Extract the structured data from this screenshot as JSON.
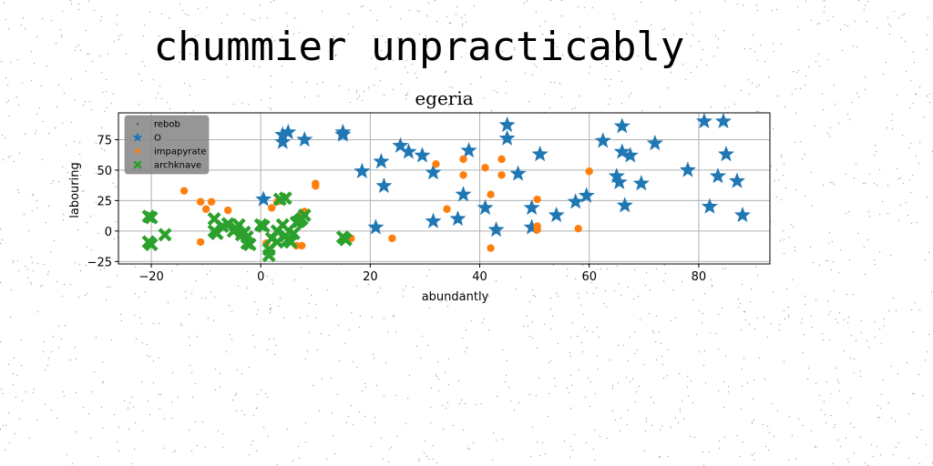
{
  "figure": {
    "suptitle": "chummier unpracticably"
  },
  "chart_data": {
    "type": "scatter",
    "title": "egeria",
    "xlabel": "abundantly",
    "ylabel": "labouring",
    "xlim": [
      -26,
      93
    ],
    "ylim": [
      -27,
      97
    ],
    "xticks": [
      -20,
      0,
      20,
      40,
      60,
      80
    ],
    "yticks": [
      -25,
      0,
      25,
      50,
      75
    ],
    "grid": true,
    "legend_position": "upper-left",
    "series": [
      {
        "name": "rebob",
        "color": "#000000",
        "marker": "dot",
        "points": []
      },
      {
        "name": "O",
        "color": "#1f77b4",
        "marker": "star",
        "points": [
          [
            0.5,
            26
          ],
          [
            4,
            79
          ],
          [
            5,
            81
          ],
          [
            4,
            73
          ],
          [
            8,
            75
          ],
          [
            15,
            81
          ],
          [
            15,
            79
          ],
          [
            18.5,
            49
          ],
          [
            21,
            3
          ],
          [
            22,
            57
          ],
          [
            22.5,
            37
          ],
          [
            25.5,
            70
          ],
          [
            27,
            65
          ],
          [
            29.5,
            62
          ],
          [
            31.5,
            48
          ],
          [
            31.5,
            8
          ],
          [
            36,
            10
          ],
          [
            37,
            30
          ],
          [
            38,
            66
          ],
          [
            41,
            19
          ],
          [
            43,
            1
          ],
          [
            45,
            87
          ],
          [
            45,
            76
          ],
          [
            47,
            47
          ],
          [
            49.5,
            19
          ],
          [
            49.5,
            3
          ],
          [
            51,
            63
          ],
          [
            54,
            13
          ],
          [
            57.5,
            24
          ],
          [
            59.5,
            29
          ],
          [
            62.5,
            74
          ],
          [
            65,
            45
          ],
          [
            65.5,
            40
          ],
          [
            66,
            86
          ],
          [
            66,
            65
          ],
          [
            66.5,
            21
          ],
          [
            67.5,
            62
          ],
          [
            69.5,
            39
          ],
          [
            72,
            72
          ],
          [
            78,
            50
          ],
          [
            81,
            90
          ],
          [
            82,
            20
          ],
          [
            83.5,
            45
          ],
          [
            84.5,
            90
          ],
          [
            85,
            63
          ],
          [
            87,
            41
          ],
          [
            88,
            13
          ]
        ]
      },
      {
        "name": "impapyrate",
        "color": "#ff7f0e",
        "marker": "circle",
        "points": [
          [
            -14,
            33
          ],
          [
            -11,
            24
          ],
          [
            -11,
            -9
          ],
          [
            -10,
            18
          ],
          [
            -9,
            24
          ],
          [
            -6,
            17
          ],
          [
            1,
            -10
          ],
          [
            2,
            19
          ],
          [
            3,
            24
          ],
          [
            6.5,
            -12
          ],
          [
            7.5,
            -12
          ],
          [
            7.5,
            15
          ],
          [
            8,
            16
          ],
          [
            10,
            39
          ],
          [
            10,
            37
          ],
          [
            16.5,
            -6
          ],
          [
            24,
            -6
          ],
          [
            32,
            55
          ],
          [
            34,
            18
          ],
          [
            37,
            59
          ],
          [
            37,
            46
          ],
          [
            41,
            52
          ],
          [
            42,
            30
          ],
          [
            42,
            -14
          ],
          [
            44,
            59
          ],
          [
            44,
            46
          ],
          [
            50.5,
            26
          ],
          [
            50.5,
            4
          ],
          [
            50.5,
            1
          ],
          [
            58,
            2
          ],
          [
            60,
            49
          ]
        ]
      },
      {
        "name": "archknave",
        "color": "#2ca02c",
        "marker": "x",
        "points": [
          [
            -20.5,
            12
          ],
          [
            -20,
            11
          ],
          [
            -20.5,
            -9
          ],
          [
            -20,
            -11
          ],
          [
            -17.5,
            -3
          ],
          [
            -8.5,
            10
          ],
          [
            -8.5,
            0
          ],
          [
            -8,
            -2
          ],
          [
            -7,
            4
          ],
          [
            -6,
            6
          ],
          [
            -5,
            0
          ],
          [
            -4.5,
            2
          ],
          [
            -4,
            5
          ],
          [
            -3.5,
            -3
          ],
          [
            -3,
            -1
          ],
          [
            -2.5,
            -5
          ],
          [
            -2.5,
            -10
          ],
          [
            -2,
            -11
          ],
          [
            0,
            5
          ],
          [
            0.5,
            4
          ],
          [
            1.5,
            -15
          ],
          [
            1.5,
            -20
          ],
          [
            2,
            -6
          ],
          [
            3,
            -9
          ],
          [
            3,
            0
          ],
          [
            3.5,
            26
          ],
          [
            4.5,
            27
          ],
          [
            4,
            5
          ],
          [
            4.5,
            -4
          ],
          [
            5,
            -7
          ],
          [
            5.5,
            -9
          ],
          [
            6,
            -2
          ],
          [
            6.5,
            7
          ],
          [
            7,
            8
          ],
          [
            7.5,
            10
          ],
          [
            8,
            13
          ],
          [
            15,
            -5
          ],
          [
            15.5,
            -7
          ]
        ]
      }
    ]
  }
}
